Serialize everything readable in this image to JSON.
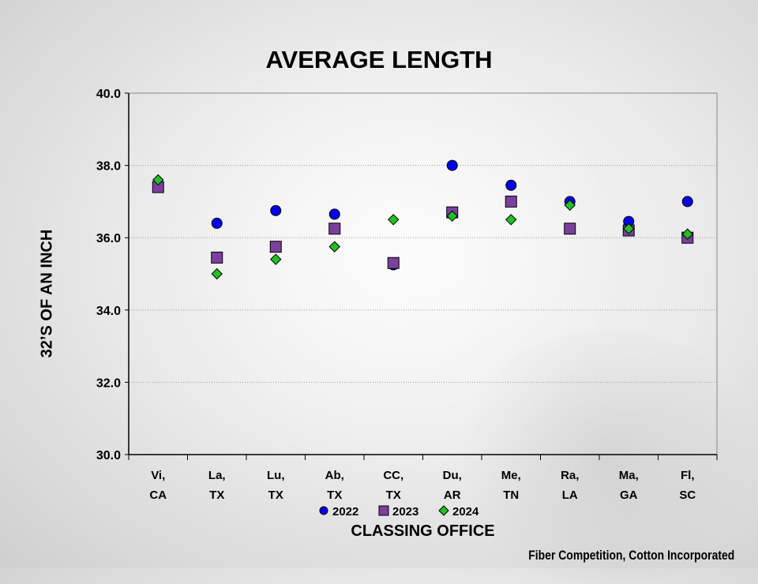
{
  "chart_data": {
    "type": "scatter",
    "title": "AVERAGE LENGTH",
    "xlabel": "CLASSING OFFICE",
    "ylabel": "32’S OF AN INCH",
    "categories": [
      [
        "Vi,",
        "CA"
      ],
      [
        "La,",
        "TX"
      ],
      [
        "Lu,",
        "TX"
      ],
      [
        "Ab,",
        "TX"
      ],
      [
        "CC,",
        "TX"
      ],
      [
        "Du,",
        "AR"
      ],
      [
        "Me,",
        "TN"
      ],
      [
        "Ra,",
        "LA"
      ],
      [
        "Ma,",
        "GA"
      ],
      [
        "Fl,",
        "SC"
      ]
    ],
    "ylim": [
      30.0,
      40.0
    ],
    "yticks": [
      "30.0",
      "32.0",
      "34.0",
      "36.0",
      "38.0",
      "40.0"
    ],
    "grid": true,
    "legend_position": "bottom",
    "series": [
      {
        "name": "2022",
        "marker": "circle",
        "color": "#0000ee",
        "values": [
          null,
          36.4,
          36.75,
          36.65,
          35.25,
          38.0,
          37.45,
          37.0,
          36.45,
          37.0
        ]
      },
      {
        "name": "2023",
        "marker": "square",
        "color": "#7b3f9e",
        "values": [
          37.4,
          35.45,
          35.75,
          36.25,
          35.3,
          36.7,
          37.0,
          36.25,
          36.2,
          36.0
        ]
      },
      {
        "name": "2024",
        "marker": "diamond",
        "color": "#22c022",
        "values": [
          37.6,
          35.0,
          35.4,
          35.75,
          36.5,
          36.6,
          36.5,
          36.9,
          36.25,
          36.1
        ]
      }
    ]
  },
  "credit": "Fiber Competition, Cotton Incorporated"
}
